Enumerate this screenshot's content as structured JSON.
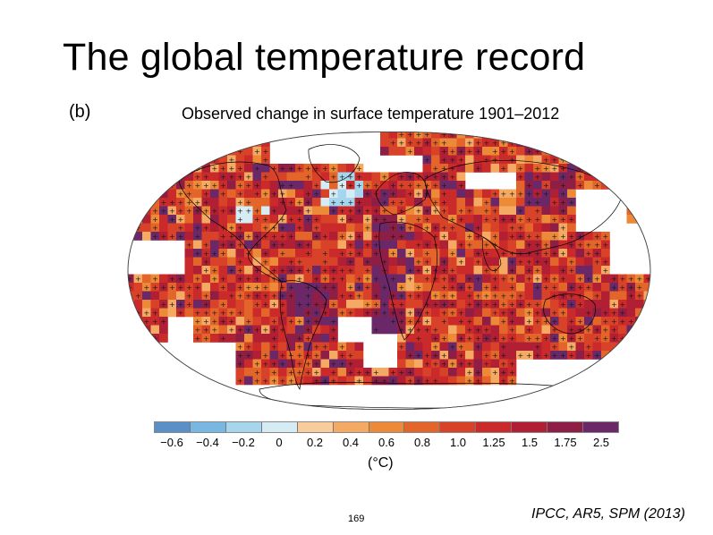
{
  "slide": {
    "title": "The global temperature record",
    "page_number": "169",
    "citation": "IPCC, AR5, SPM (2013)"
  },
  "figure": {
    "panel_label": "(b)",
    "map_title": "Observed change in surface temperature 1901–2012",
    "projection": "Robinson",
    "significance_marker": "+",
    "no_data_color": "#ffffff",
    "land_outline_color": "#000000"
  },
  "colorbar": {
    "unit_label": "(°C)",
    "tick_labels": [
      "−0.6",
      "−0.4",
      "−0.2",
      "0",
      "0.2",
      "0.4",
      "0.6",
      "0.8",
      "1.0",
      "1.25",
      "1.5",
      "1.75",
      "2.5"
    ],
    "colors": [
      "#5b8fc7",
      "#79b7e3",
      "#a6d6ee",
      "#d6ecf4",
      "#f9cd9b",
      "#f4aa62",
      "#ec8a38",
      "#e3652a",
      "#d84229",
      "#cb2a2a",
      "#b01f33",
      "#8e1e46",
      "#6a2868"
    ]
  }
}
